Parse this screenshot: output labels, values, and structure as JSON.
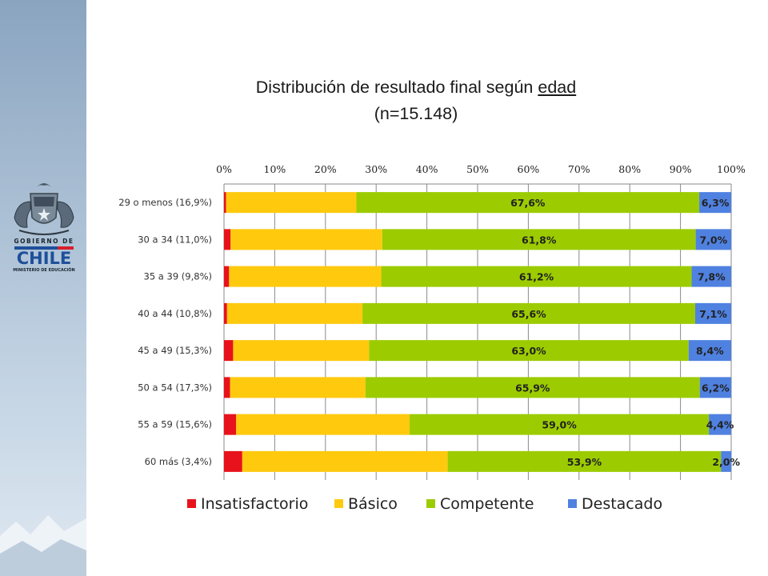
{
  "slide": {
    "title_line1_pre": "Distribución de resultado final según ",
    "title_line1_underlined": "edad",
    "title_line2": "(n=15.148)"
  },
  "logo": {
    "gobierno_text": "GOBIERNO DE",
    "country_text": "CHILE",
    "ministry_text": "MINISTERIO DE EDUCACIÓN",
    "colors": {
      "blue": "#1f4f9a",
      "red": "#d81e2c"
    }
  },
  "chart_data": {
    "type": "bar",
    "orientation": "horizontal",
    "stacked": "percent",
    "categories": [
      "29 o menos (16,9%)",
      "30 a 34 (11,0%)",
      "35 a 39 (9,8%)",
      "40 a 44 (10,8%)",
      "45 a 49 (15,3%)",
      "50 a 54 (17,3%)",
      "55 a 59 (15,6%)",
      "60 más (3,4%)"
    ],
    "series": [
      {
        "name": "Insatisfactorio",
        "color": "#e8121c",
        "values": [
          0.4,
          1.3,
          1.0,
          0.6,
          1.8,
          1.2,
          2.4,
          3.6
        ],
        "labels": [
          "",
          "",
          "",
          "",
          "",
          "",
          "",
          ""
        ]
      },
      {
        "name": "Básico",
        "color": "#ffc90e",
        "values": [
          25.7,
          29.9,
          30.0,
          26.7,
          26.8,
          26.7,
          34.2,
          40.5
        ],
        "labels": [
          "",
          "",
          "",
          "",
          "",
          "",
          "",
          ""
        ]
      },
      {
        "name": "Competente",
        "color": "#9ccc00",
        "values": [
          67.6,
          61.8,
          61.2,
          65.6,
          63.0,
          65.9,
          59.0,
          53.9
        ],
        "labels": [
          "67,6%",
          "61,8%",
          "61,2%",
          "65,6%",
          "63,0%",
          "65,9%",
          "59,0%",
          "53,9%"
        ]
      },
      {
        "name": "Destacado",
        "color": "#4f81e0",
        "values": [
          6.3,
          7.0,
          7.8,
          7.1,
          8.4,
          6.2,
          4.4,
          2.0
        ],
        "labels": [
          "6,3%",
          "7,0%",
          "7,8%",
          "7,1%",
          "8,4%",
          "6,2%",
          "4,4%",
          "2,0%"
        ]
      }
    ],
    "xlim": [
      0,
      100
    ],
    "xticks": [
      "0%",
      "10%",
      "20%",
      "30%",
      "40%",
      "50%",
      "60%",
      "70%",
      "80%",
      "90%",
      "100%"
    ],
    "xaxis_position": "top",
    "grid": true,
    "legend": "bottom"
  }
}
